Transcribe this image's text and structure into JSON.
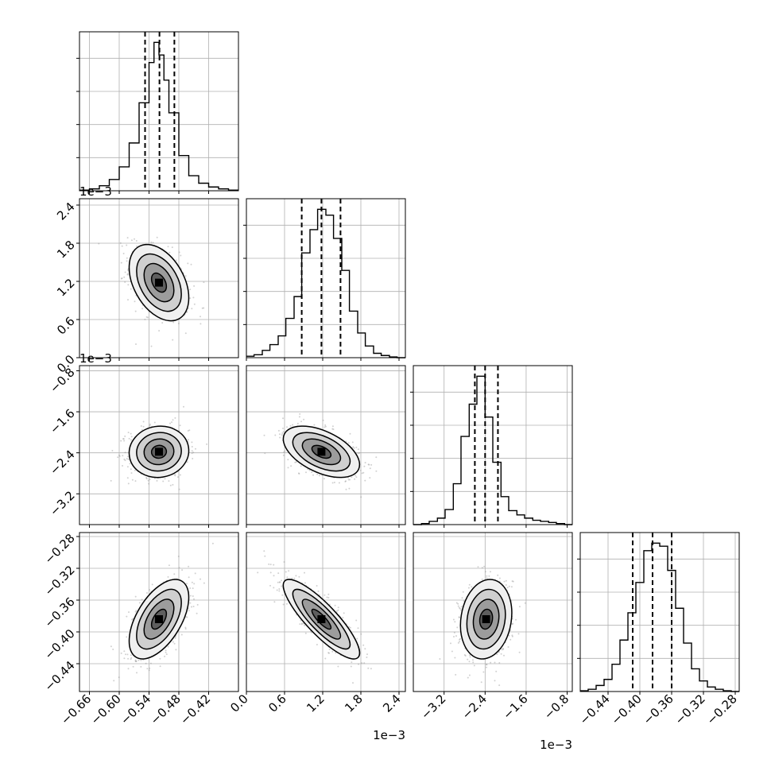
{
  "chart_data": {
    "type": "corner",
    "colors": {
      "ink": "#000000",
      "grid": "#b0b0b0",
      "points": "#9a9a9a"
    },
    "params": [
      {
        "range": [
          -0.68,
          -0.36
        ],
        "ticks": [
          -0.66,
          -0.6,
          -0.54,
          -0.48,
          -0.42
        ],
        "tick_labels": [
          "−0.66",
          "−0.60",
          "−0.54",
          "−0.48",
          "−0.42"
        ],
        "offset_label": "",
        "quantiles": [
          -0.548,
          -0.519,
          -0.489
        ],
        "mean": -0.52,
        "sd": 0.03
      },
      {
        "range": [
          0.0,
          2.5
        ],
        "ticks": [
          0.0,
          0.6,
          1.2,
          1.8,
          2.4
        ],
        "tick_labels": [
          "0.0",
          "0.6",
          "1.2",
          "1.8",
          "2.4"
        ],
        "offset_label": "1e−3",
        "quantiles": [
          0.87,
          1.18,
          1.48
        ],
        "mean": 1.18,
        "sd": 0.3
      },
      {
        "range": [
          -3.8,
          -0.7
        ],
        "ticks": [
          -3.2,
          -2.4,
          -1.6,
          -0.8
        ],
        "tick_labels": [
          "−3.2",
          "−2.4",
          "−1.6",
          "−0.8"
        ],
        "offset_label": "1e−3",
        "quantiles": [
          -2.6,
          -2.4,
          -2.15
        ],
        "mean": -2.38,
        "sd": 0.25
      },
      {
        "range": [
          -0.475,
          -0.275
        ],
        "ticks": [
          -0.44,
          -0.4,
          -0.36,
          -0.32,
          -0.28
        ],
        "tick_labels": [
          "−0.44",
          "−0.40",
          "−0.36",
          "−0.32",
          "−0.28"
        ],
        "offset_label": "",
        "quantiles": [
          -0.409,
          -0.384,
          -0.36
        ],
        "mean": -0.384,
        "sd": 0.025
      }
    ],
    "correlations": [
      [
        1,
        -0.4,
        0.05,
        0.55
      ],
      [
        -0.4,
        1,
        -0.5,
        -0.85
      ],
      [
        0.05,
        -0.5,
        1,
        0.15
      ],
      [
        0.55,
        -0.85,
        0.15,
        1
      ]
    ],
    "histograms": [
      {
        "param": 0,
        "bins": [
          -0.68,
          -0.66,
          -0.64,
          -0.62,
          -0.6,
          -0.58,
          -0.56,
          -0.54,
          -0.53,
          -0.52,
          -0.51,
          -0.5,
          -0.48,
          -0.46,
          -0.44,
          -0.42,
          -0.4,
          -0.38,
          -0.36
        ],
        "counts": [
          0.5,
          1.5,
          4,
          9,
          19,
          38,
          70,
          102,
          118,
          108,
          88,
          62,
          28,
          12,
          6,
          3,
          1.5,
          0.5
        ]
      },
      {
        "param": 1,
        "bins": [
          0.0,
          0.12,
          0.25,
          0.37,
          0.5,
          0.62,
          0.75,
          0.87,
          1.0,
          1.12,
          1.25,
          1.37,
          1.5,
          1.62,
          1.75,
          1.87,
          2.0,
          2.12,
          2.25,
          2.37,
          2.5
        ],
        "counts": [
          1,
          2,
          5,
          9,
          15,
          27,
          42,
          72,
          88,
          102,
          98,
          82,
          60,
          32,
          17,
          8,
          3,
          1.5,
          0.5,
          0
        ]
      },
      {
        "param": 2,
        "bins": [
          -3.8,
          -3.64,
          -3.49,
          -3.33,
          -3.18,
          -3.02,
          -2.87,
          -2.71,
          -2.56,
          -2.4,
          -2.25,
          -2.09,
          -1.94,
          -1.78,
          -1.63,
          -1.47,
          -1.32,
          -1.16,
          -1.01,
          -0.85,
          -0.7
        ],
        "counts": [
          0,
          1,
          3,
          6,
          14,
          38,
          82,
          112,
          138,
          100,
          58,
          26,
          13,
          9,
          6,
          4,
          3,
          2,
          1,
          0
        ]
      },
      {
        "param": 3,
        "bins": [
          -0.475,
          -0.465,
          -0.455,
          -0.445,
          -0.435,
          -0.425,
          -0.415,
          -0.405,
          -0.395,
          -0.385,
          -0.375,
          -0.365,
          -0.355,
          -0.345,
          -0.335,
          -0.325,
          -0.315,
          -0.305,
          -0.295,
          -0.285,
          -0.275
        ],
        "counts": [
          0.5,
          1.5,
          4,
          8,
          18,
          34,
          52,
          72,
          93,
          98,
          96,
          80,
          55,
          32,
          15,
          7,
          3,
          1.5,
          0.5,
          0
        ]
      }
    ]
  }
}
